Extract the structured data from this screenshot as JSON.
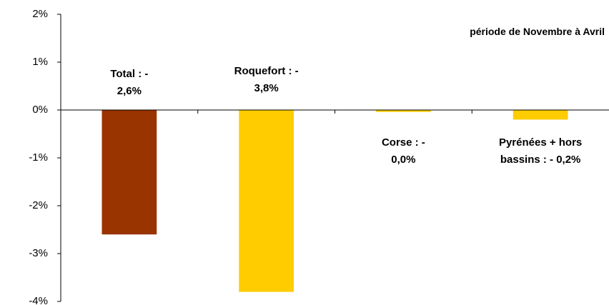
{
  "chart_data": {
    "type": "bar",
    "subtitle": "période de Novembre à Avril",
    "values": [
      -2.6,
      -3.8,
      -0.04,
      -0.2
    ],
    "value_labels": [
      "Total : - 2,6%",
      "Roquefort : - 3,8%",
      "Corse : - 0,0%",
      "Pyrénées + hors bassins : - 0,2%"
    ],
    "colors": [
      "#993300",
      "#ffcc00",
      "#ffcc00",
      "#ffcc00"
    ],
    "ylim": [
      -4,
      2
    ],
    "yticks": [
      {
        "value": -4,
        "label": "-4%"
      },
      {
        "value": -3,
        "label": "-3%"
      },
      {
        "value": -2,
        "label": "-2%"
      },
      {
        "value": -1,
        "label": "-1%"
      },
      {
        "value": 0,
        "label": "0%"
      },
      {
        "value": 1,
        "label": "1%"
      },
      {
        "value": 2,
        "label": "2%"
      }
    ]
  }
}
